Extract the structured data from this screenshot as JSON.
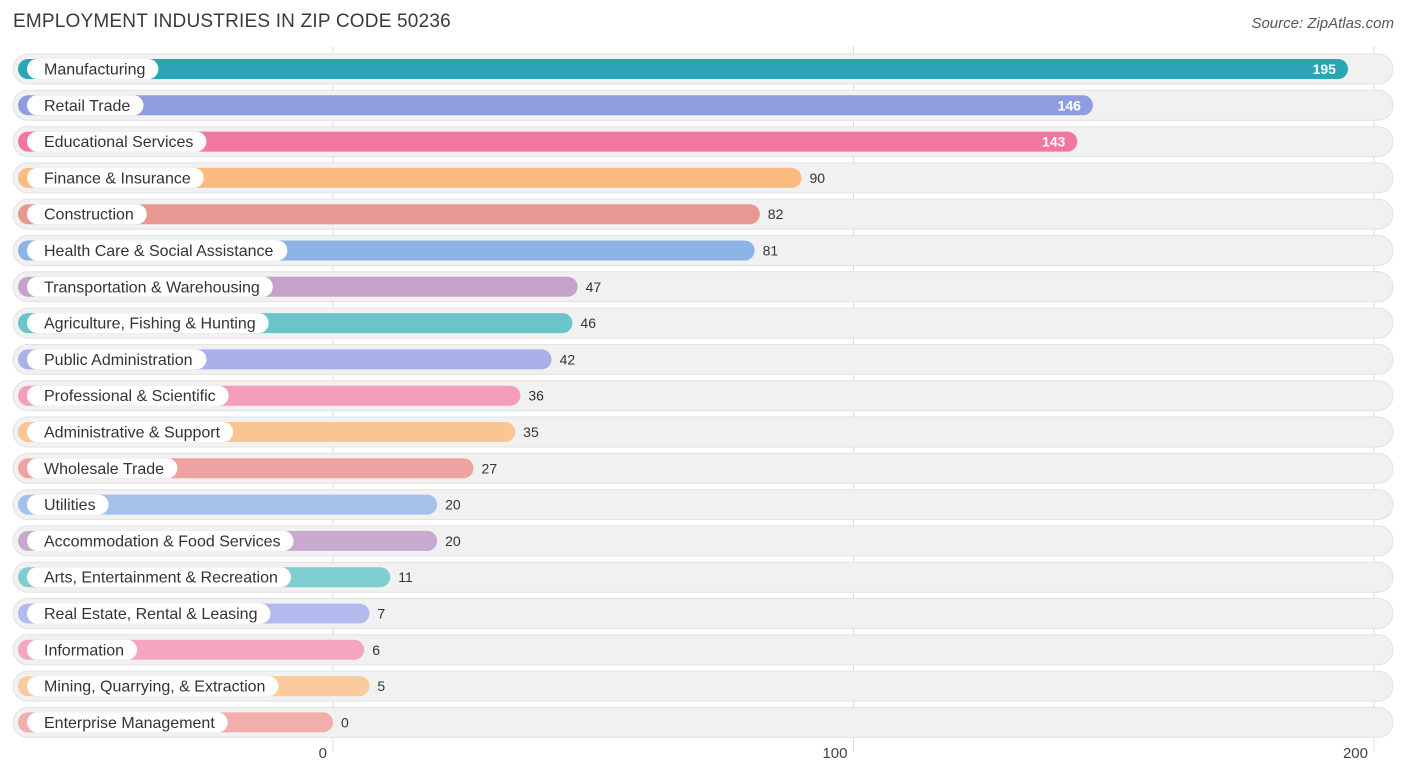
{
  "chart_data": {
    "type": "bar",
    "orientation": "horizontal",
    "title": "EMPLOYMENT INDUSTRIES IN ZIP CODE 50236",
    "source": "Source: ZipAtlas.com",
    "xlabel": "",
    "ylabel": "",
    "xlim": [
      0,
      200
    ],
    "xticks": [
      0,
      100,
      200
    ],
    "grid": true,
    "categories": [
      "Manufacturing",
      "Retail Trade",
      "Educational Services",
      "Finance & Insurance",
      "Construction",
      "Health Care & Social Assistance",
      "Transportation & Warehousing",
      "Agriculture, Fishing & Hunting",
      "Public Administration",
      "Professional & Scientific",
      "Administrative & Support",
      "Wholesale Trade",
      "Utilities",
      "Accommodation & Food Services",
      "Arts, Entertainment & Recreation",
      "Real Estate, Rental & Leasing",
      "Information",
      "Mining, Quarrying, & Extraction",
      "Enterprise Management"
    ],
    "values": [
      195,
      146,
      143,
      90,
      82,
      81,
      47,
      46,
      42,
      36,
      35,
      27,
      20,
      20,
      11,
      7,
      6,
      5,
      0
    ],
    "colors": [
      "#2ba5b5",
      "#8f9de0",
      "#f2769d",
      "#fbbb7f",
      "#e99793",
      "#8db4e6",
      "#c6a2cb",
      "#6cc4cb",
      "#aab0e8",
      "#f59dbb",
      "#fbc593",
      "#efa3a1",
      "#a4c1ea",
      "#c8a9cf",
      "#7ecdd0",
      "#b5baee",
      "#f6a5c1",
      "#fbcb9e",
      "#f1aeab"
    ]
  }
}
